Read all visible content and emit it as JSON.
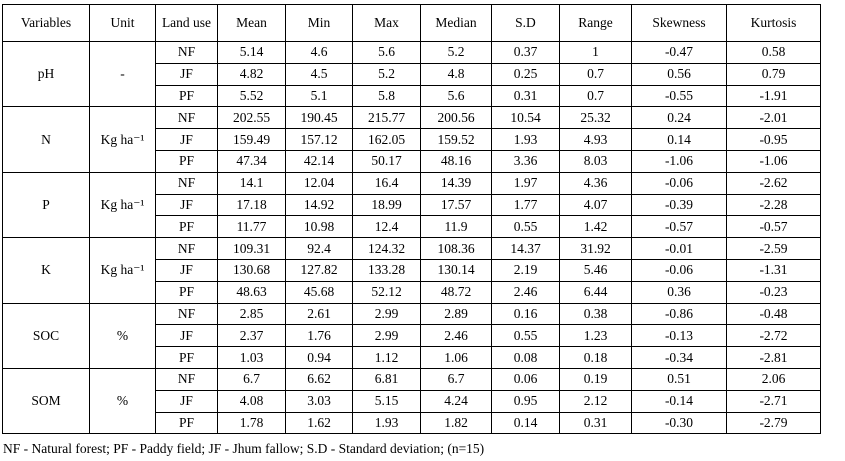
{
  "table": {
    "columns": [
      "Variables",
      "Unit",
      "Land use",
      "Mean",
      "Min",
      "Max",
      "Median",
      "S.D",
      "Range",
      "Skewness",
      "Kurtosis"
    ],
    "groups": [
      {
        "variable": "pH",
        "unit": "-",
        "rows": [
          {
            "land_use": "NF",
            "values": [
              "5.14",
              "4.6",
              "5.6",
              "5.2",
              "0.37",
              "1",
              "-0.47",
              "0.58"
            ]
          },
          {
            "land_use": "JF",
            "values": [
              "4.82",
              "4.5",
              "5.2",
              "4.8",
              "0.25",
              "0.7",
              "0.56",
              "0.79"
            ]
          },
          {
            "land_use": "PF",
            "values": [
              "5.52",
              "5.1",
              "5.8",
              "5.6",
              "0.31",
              "0.7",
              "-0.55",
              "-1.91"
            ]
          }
        ]
      },
      {
        "variable": "N",
        "unit": "Kg ha⁻¹",
        "rows": [
          {
            "land_use": "NF",
            "values": [
              "202.55",
              "190.45",
              "215.77",
              "200.56",
              "10.54",
              "25.32",
              "0.24",
              "-2.01"
            ]
          },
          {
            "land_use": "JF",
            "values": [
              "159.49",
              "157.12",
              "162.05",
              "159.52",
              "1.93",
              "4.93",
              "0.14",
              "-0.95"
            ]
          },
          {
            "land_use": "PF",
            "values": [
              "47.34",
              "42.14",
              "50.17",
              "48.16",
              "3.36",
              "8.03",
              "-1.06",
              "-1.06"
            ]
          }
        ]
      },
      {
        "variable": "P",
        "unit": "Kg ha⁻¹",
        "rows": [
          {
            "land_use": "NF",
            "values": [
              "14.1",
              "12.04",
              "16.4",
              "14.39",
              "1.97",
              "4.36",
              "-0.06",
              "-2.62"
            ]
          },
          {
            "land_use": "JF",
            "values": [
              "17.18",
              "14.92",
              "18.99",
              "17.57",
              "1.77",
              "4.07",
              "-0.39",
              "-2.28"
            ]
          },
          {
            "land_use": "PF",
            "values": [
              "11.77",
              "10.98",
              "12.4",
              "11.9",
              "0.55",
              "1.42",
              "-0.57",
              "-0.57"
            ]
          }
        ]
      },
      {
        "variable": "K",
        "unit": "Kg ha⁻¹",
        "rows": [
          {
            "land_use": "NF",
            "values": [
              "109.31",
              "92.4",
              "124.32",
              "108.36",
              "14.37",
              "31.92",
              "-0.01",
              "-2.59"
            ]
          },
          {
            "land_use": "JF",
            "values": [
              "130.68",
              "127.82",
              "133.28",
              "130.14",
              "2.19",
              "5.46",
              "-0.06",
              "-1.31"
            ]
          },
          {
            "land_use": "PF",
            "values": [
              "48.63",
              "45.68",
              "52.12",
              "48.72",
              "2.46",
              "6.44",
              "0.36",
              "-0.23"
            ]
          }
        ]
      },
      {
        "variable": "SOC",
        "unit": "%",
        "rows": [
          {
            "land_use": "NF",
            "values": [
              "2.85",
              "2.61",
              "2.99",
              "2.89",
              "0.16",
              "0.38",
              "-0.86",
              "-0.48"
            ]
          },
          {
            "land_use": "JF",
            "values": [
              "2.37",
              "1.76",
              "2.99",
              "2.46",
              "0.55",
              "1.23",
              "-0.13",
              "-2.72"
            ]
          },
          {
            "land_use": "PF",
            "values": [
              "1.03",
              "0.94",
              "1.12",
              "1.06",
              "0.08",
              "0.18",
              "-0.34",
              "-2.81"
            ]
          }
        ]
      },
      {
        "variable": "SOM",
        "unit": "%",
        "rows": [
          {
            "land_use": "NF",
            "values": [
              "6.7",
              "6.62",
              "6.81",
              "6.7",
              "0.06",
              "0.19",
              "0.51",
              "2.06"
            ]
          },
          {
            "land_use": "JF",
            "values": [
              "4.08",
              "3.03",
              "5.15",
              "4.24",
              "0.95",
              "2.12",
              "-0.14",
              "-2.71"
            ]
          },
          {
            "land_use": "PF",
            "values": [
              "1.78",
              "1.62",
              "1.93",
              "1.82",
              "0.14",
              "0.31",
              "-0.30",
              "-2.79"
            ]
          }
        ]
      }
    ],
    "footnote": "NF - Natural forest; PF - Paddy field; JF - Jhum fallow; S.D  - Standard deviation; (n=15)"
  }
}
